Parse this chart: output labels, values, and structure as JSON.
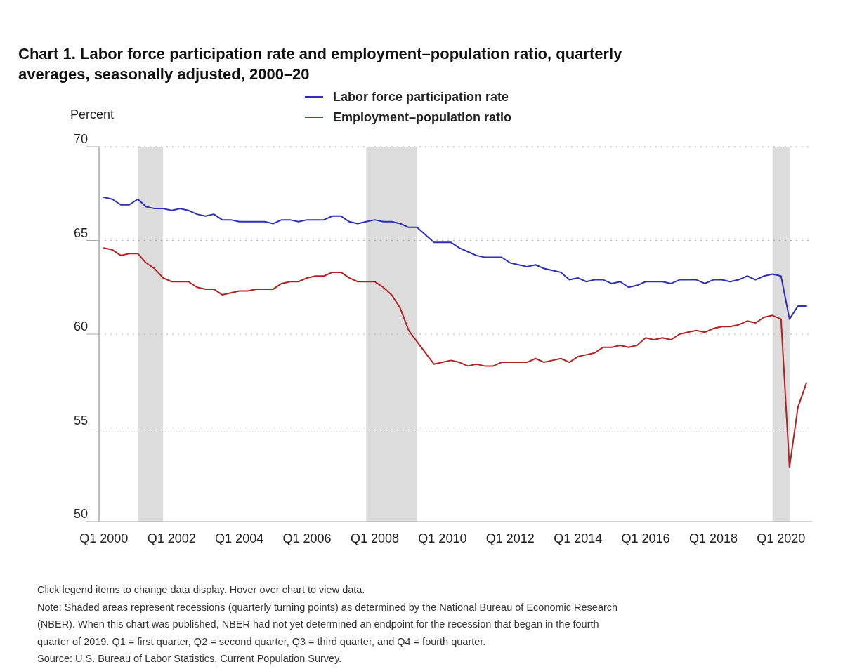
{
  "chart_data": {
    "type": "line",
    "title": "Chart 1. Labor force participation rate and employment–population ratio, quarterly averages, seasonally adjusted, 2000–20",
    "ylabel": "Percent",
    "x": [
      "2000-01",
      "2000-04",
      "2000-07",
      "2000-10",
      "2001-01",
      "2001-04",
      "2001-07",
      "2001-10",
      "2002-01",
      "2002-04",
      "2002-07",
      "2002-10",
      "2003-01",
      "2003-04",
      "2003-07",
      "2003-10",
      "2004-01",
      "2004-04",
      "2004-07",
      "2004-10",
      "2005-01",
      "2005-04",
      "2005-07",
      "2005-10",
      "2006-01",
      "2006-04",
      "2006-07",
      "2006-10",
      "2007-01",
      "2007-04",
      "2007-07",
      "2007-10",
      "2008-01",
      "2008-04",
      "2008-07",
      "2008-10",
      "2009-01",
      "2009-04",
      "2009-07",
      "2009-10",
      "2010-01",
      "2010-04",
      "2010-07",
      "2010-10",
      "2011-01",
      "2011-04",
      "2011-07",
      "2011-10",
      "2012-01",
      "2012-04",
      "2012-07",
      "2012-10",
      "2013-01",
      "2013-04",
      "2013-07",
      "2013-10",
      "2014-01",
      "2014-04",
      "2014-07",
      "2014-10",
      "2015-01",
      "2015-04",
      "2015-07",
      "2015-10",
      "2016-01",
      "2016-04",
      "2016-07",
      "2016-10",
      "2017-01",
      "2017-04",
      "2017-07",
      "2017-10",
      "2018-01",
      "2018-04",
      "2018-07",
      "2018-10",
      "2019-01",
      "2019-04",
      "2019-07",
      "2019-10",
      "2020-01",
      "2020-04",
      "2020-07",
      "2020-10"
    ],
    "series": [
      {
        "name": "Labor force participation rate",
        "color": "#2e2eb8",
        "values": [
          67.3,
          67.2,
          66.9,
          66.9,
          67.2,
          66.8,
          66.7,
          66.7,
          66.6,
          66.7,
          66.6,
          66.4,
          66.3,
          66.4,
          66.1,
          66.1,
          66.0,
          66.0,
          66.0,
          66.0,
          65.9,
          66.1,
          66.1,
          66.0,
          66.1,
          66.1,
          66.1,
          66.3,
          66.3,
          66.0,
          65.9,
          66.0,
          66.1,
          66.0,
          66.0,
          65.9,
          65.7,
          65.7,
          65.3,
          64.9,
          64.9,
          64.9,
          64.6,
          64.4,
          64.2,
          64.1,
          64.1,
          64.1,
          63.8,
          63.7,
          63.6,
          63.7,
          63.5,
          63.4,
          63.3,
          62.9,
          63.0,
          62.8,
          62.9,
          62.9,
          62.7,
          62.8,
          62.5,
          62.6,
          62.8,
          62.8,
          62.8,
          62.7,
          62.9,
          62.9,
          62.9,
          62.7,
          62.9,
          62.9,
          62.8,
          62.9,
          63.1,
          62.9,
          63.1,
          63.2,
          63.1,
          60.8,
          61.5,
          61.5
        ]
      },
      {
        "name": "Employment–population ratio",
        "color": "#b22222",
        "values": [
          64.6,
          64.5,
          64.2,
          64.3,
          64.3,
          63.8,
          63.5,
          63.0,
          62.8,
          62.8,
          62.8,
          62.5,
          62.4,
          62.4,
          62.1,
          62.2,
          62.3,
          62.3,
          62.4,
          62.4,
          62.4,
          62.7,
          62.8,
          62.8,
          63.0,
          63.1,
          63.1,
          63.3,
          63.3,
          63.0,
          62.8,
          62.8,
          62.8,
          62.5,
          62.1,
          61.4,
          60.2,
          59.6,
          59.0,
          58.4,
          58.5,
          58.6,
          58.5,
          58.3,
          58.4,
          58.3,
          58.3,
          58.5,
          58.5,
          58.5,
          58.5,
          58.7,
          58.5,
          58.6,
          58.7,
          58.5,
          58.8,
          58.9,
          59.0,
          59.3,
          59.3,
          59.4,
          59.3,
          59.4,
          59.8,
          59.7,
          59.8,
          59.7,
          60.0,
          60.1,
          60.2,
          60.1,
          60.3,
          60.4,
          60.4,
          60.5,
          60.7,
          60.6,
          60.9,
          61.0,
          60.8,
          52.9,
          56.1,
          57.4
        ]
      }
    ],
    "xlim": [
      "1999-11-10",
      "2020-12-01"
    ],
    "xticks": [
      {
        "value": "2000-01",
        "label": "Q1 2000"
      },
      {
        "value": "2002-01",
        "label": "Q1 2002"
      },
      {
        "value": "2004-01",
        "label": "Q1 2004"
      },
      {
        "value": "2006-01",
        "label": "Q1 2006"
      },
      {
        "value": "2008-01",
        "label": "Q1 2008"
      },
      {
        "value": "2010-01",
        "label": "Q1 2010"
      },
      {
        "value": "2012-01",
        "label": "Q1 2012"
      },
      {
        "value": "2014-01",
        "label": "Q1 2014"
      },
      {
        "value": "2016-01",
        "label": "Q1 2016"
      },
      {
        "value": "2018-01",
        "label": "Q1 2018"
      },
      {
        "value": "2020-01",
        "label": "Q1 2020"
      }
    ],
    "ylim": [
      50,
      70
    ],
    "yticks": [
      50,
      55,
      60,
      65,
      70
    ],
    "grid": "y",
    "legend": "top",
    "bands": [
      {
        "axis": "x",
        "from": "2001-01",
        "to": "2001-10",
        "color": "#dcdcdc"
      },
      {
        "axis": "x",
        "from": "2007-10",
        "to": "2009-04",
        "color": "#dcdcdc"
      },
      {
        "axis": "x",
        "from": "2019-10",
        "to": "2020-04",
        "color": "#dcdcdc"
      }
    ],
    "annotations": [
      "Click legend items to change data display. Hover over chart to view data.",
      "Note: Shaded areas represent recessions (quarterly turning points) as determined by the National Bureau of Economic Research (NBER). When this chart was published, NBER had not yet determined an endpoint for the recession that began in the fourth quarter of 2019. Q1 = first quarter, Q2 = second quarter, Q3 = third quarter, and Q4 = fourth quarter.",
      "Source: U.S. Bureau of Labor Statistics, Current Population Survey."
    ]
  }
}
